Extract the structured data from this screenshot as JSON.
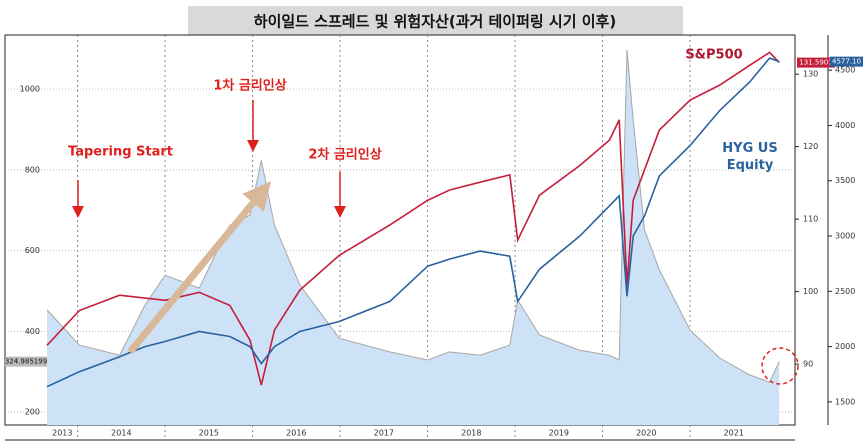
{
  "chart_data": {
    "type": "line",
    "title": "하이일드 스프레드 및 위험자산(과거 테이퍼링 시기 이후)",
    "x": [
      2013.65,
      2014.02,
      2014.48,
      2014.77,
      2015.0,
      2015.39,
      2015.74,
      2015.97,
      2016.1,
      2016.25,
      2016.54,
      2016.99,
      2017.57,
      2018.0,
      2018.25,
      2018.6,
      2018.94,
      2019.03,
      2019.28,
      2019.74,
      2020.08,
      2020.19,
      2020.28,
      2020.35,
      2020.48,
      2020.65,
      2021.0,
      2021.34,
      2021.68,
      2021.91,
      2022.02
    ],
    "xlim": [
      2013.65,
      2022.2
    ],
    "xticks": [
      {
        "value": 2013,
        "label": "2013"
      },
      {
        "value": 2014,
        "label": "2014"
      },
      {
        "value": 2015,
        "label": "2015"
      },
      {
        "value": 2016,
        "label": "2016"
      },
      {
        "value": 2017,
        "label": "2017"
      },
      {
        "value": 2018,
        "label": "2018"
      },
      {
        "value": 2019,
        "label": "2019"
      },
      {
        "value": 2020,
        "label": "2020"
      },
      {
        "value": 2021,
        "label": "2021"
      }
    ],
    "xtick_short_labels": [
      "'13",
      "'14",
      "'15",
      "'16",
      "'17",
      "'18",
      "'19",
      "'20",
      "'21"
    ],
    "ylim": [
      168,
      1134
    ],
    "yticks": [
      200,
      400,
      600,
      800,
      1000
    ],
    "y2lim": [
      81.6,
      135.4
    ],
    "y2ticks": [
      90,
      100,
      110,
      120,
      130
    ],
    "y3lim": [
      1291,
      4818
    ],
    "y3ticks": [
      1500,
      2000,
      2500,
      3000,
      3500,
      4000,
      4500
    ],
    "grid": true,
    "series": [
      {
        "style": "area",
        "color": "#a6a6a6",
        "fill": "#cde2f7",
        "axis": "y",
        "values": [
          453,
          366,
          341,
          465,
          539,
          507,
          663,
          688,
          824,
          663,
          515,
          383,
          349,
          329,
          349,
          341,
          366,
          477,
          391,
          353,
          341,
          329,
          1097,
          923,
          651,
          552,
          403,
          334,
          292,
          274,
          324.985199
        ],
        "value_labels": [
          null,
          null,
          null,
          null,
          null,
          null,
          null,
          null,
          null,
          null,
          null,
          null,
          null,
          null,
          null,
          null,
          null,
          null,
          null,
          null,
          null,
          null,
          null,
          null,
          null,
          null,
          null,
          null,
          null,
          null,
          "324.985199"
        ]
      },
      {
        "name": "S&P500",
        "style": "line",
        "color": "#c41e3a",
        "axis": "y2",
        "values": [
          92.6,
          97.4,
          99.5,
          99.1,
          98.8,
          99.9,
          98.1,
          93.3,
          87.1,
          94.7,
          100.2,
          105.0,
          109.2,
          112.6,
          114.0,
          115.1,
          116.1,
          107.1,
          113.3,
          117.4,
          120.9,
          123.7,
          100.9,
          112.6,
          116.8,
          122.3,
          126.4,
          128.5,
          131.2,
          133.0,
          131.5903
        ]
      },
      {
        "name": "HYG US Equity",
        "style": "line",
        "color": "#2a62a0",
        "axis": "y3",
        "values": [
          1637,
          1773,
          1909,
          2000,
          2046,
          2137,
          2091,
          2000,
          1846,
          2000,
          2137,
          2227,
          2409,
          2727,
          2791,
          2864,
          2818,
          2409,
          2700,
          3000,
          3273,
          3364,
          2455,
          3000,
          3182,
          3545,
          3818,
          4136,
          4391,
          4609,
          4577.1
        ],
        "value_labels": [
          null,
          null,
          null,
          null,
          null,
          null,
          null,
          null,
          null,
          null,
          null,
          null,
          null,
          null,
          null,
          null,
          null,
          null,
          null,
          null,
          null,
          null,
          null,
          null,
          null,
          null,
          null,
          null,
          null,
          null,
          "4577.10"
        ]
      }
    ],
    "annotations": [
      "Tapering Start",
      "1차 금리인상",
      "2차 금리인상"
    ]
  }
}
